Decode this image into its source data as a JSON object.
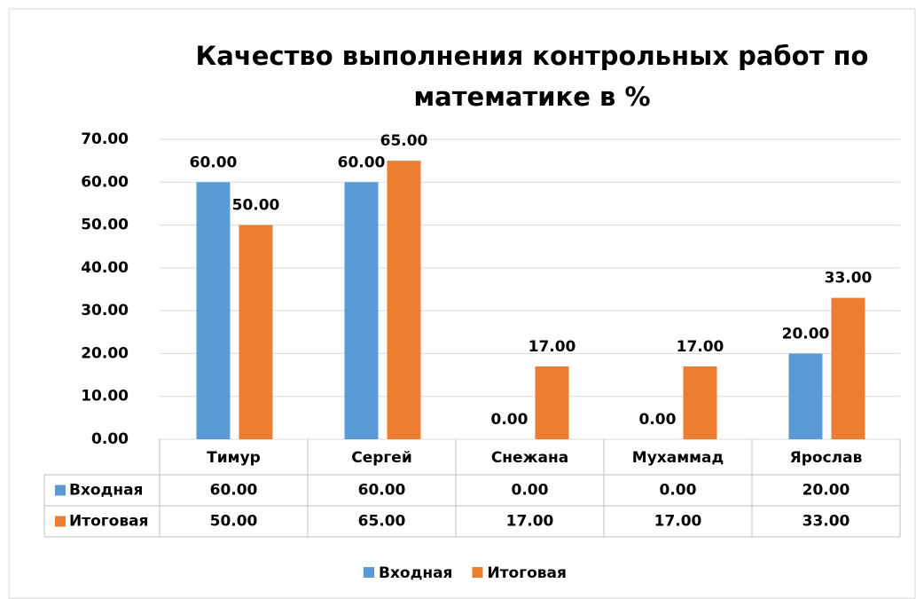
{
  "chart_data": {
    "type": "bar",
    "title": "Качество выполнения контрольных работ по математике в %",
    "categories": [
      "Тимур",
      "Сергей",
      "Снежана",
      "Мухаммад",
      "Ярослав"
    ],
    "series": [
      {
        "name": "Входная",
        "color": "#5b9bd5",
        "values": [
          60,
          60,
          0,
          0,
          20
        ],
        "value_labels": [
          "60.00",
          "60.00",
          "0.00",
          "0.00",
          "20.00"
        ]
      },
      {
        "name": "Итоговая",
        "color": "#ed7d31",
        "values": [
          50,
          65,
          17,
          17,
          33
        ],
        "value_labels": [
          "50.00",
          "65.00",
          "17.00",
          "17.00",
          "33.00"
        ]
      }
    ],
    "ylim": [
      0,
      70
    ],
    "yticks": [
      {
        "value": 0,
        "label": "0.00"
      },
      {
        "value": 10,
        "label": "10.00"
      },
      {
        "value": 20,
        "label": "20.00"
      },
      {
        "value": 30,
        "label": "30.00"
      },
      {
        "value": 40,
        "label": "40.00"
      },
      {
        "value": 50,
        "label": "50.00"
      },
      {
        "value": 60,
        "label": "60.00"
      },
      {
        "value": 70,
        "label": "70.00"
      }
    ],
    "grid": true,
    "legend": "bottom"
  }
}
